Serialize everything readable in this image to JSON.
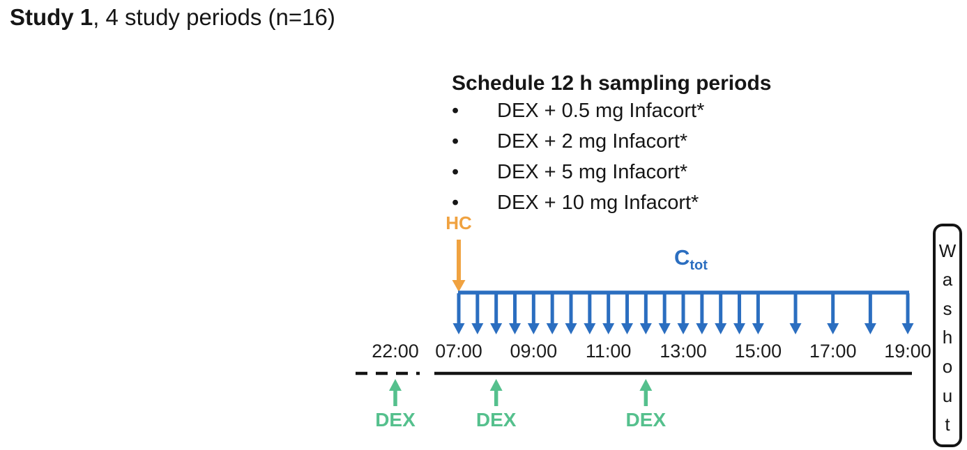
{
  "title": {
    "bold": "Study 1",
    "rest": ", 4 study periods (n=16)"
  },
  "schedule": {
    "heading": "Schedule 12 h sampling periods",
    "bullet": "•",
    "items": [
      "DEX + 0.5 mg Infacort*",
      "DEX + 2 mg Infacort*",
      "DEX + 5 mg Infacort*",
      "DEX + 10 mg Infacort*"
    ]
  },
  "timeline": {
    "hc_label": "HC",
    "sampling_label_main": "C",
    "sampling_label_sub": "tot",
    "sampling_times": [
      "07:00",
      "07:30",
      "08:00",
      "08:30",
      "09:00",
      "09:30",
      "10:00",
      "10:30",
      "11:00",
      "11:30",
      "12:00",
      "12:30",
      "13:00",
      "13:30",
      "14:00",
      "14:30",
      "15:00",
      "16:00",
      "17:00",
      "18:00",
      "19:00"
    ],
    "tick_labels": [
      "22:00",
      "07:00",
      "09:00",
      "11:00",
      "13:00",
      "15:00",
      "17:00",
      "19:00"
    ],
    "dex_label": "DEX",
    "dex_times": [
      "22:00",
      "08:00",
      "12:00"
    ],
    "washout_label": "Washout"
  },
  "colors": {
    "hc_orange": "#F0A240",
    "sampling_blue": "#2B6EC0",
    "dex_green": "#55C08D",
    "line_black": "#141414"
  }
}
